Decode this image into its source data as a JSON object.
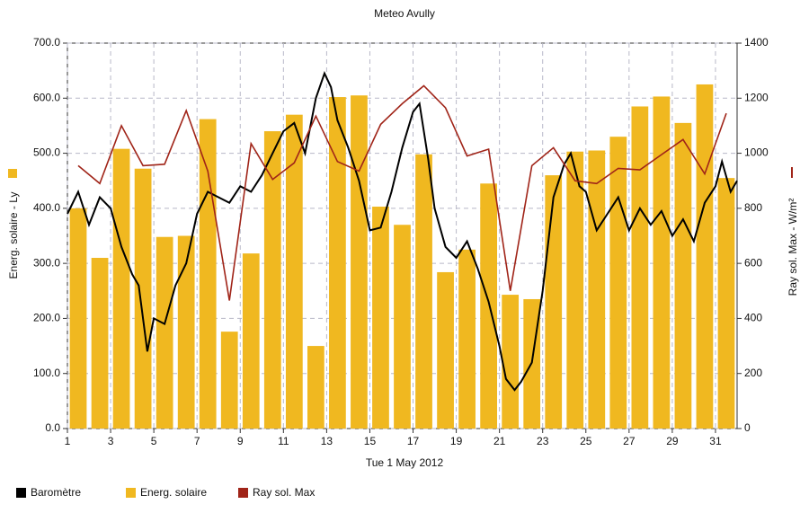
{
  "chart_data": {
    "type": "combo",
    "title": "Meteo  Avully",
    "x_label": "Tue 1 May 2012",
    "y_label": "Energ. solaire - Ly",
    "y2_label": "Ray sol. Max - W/m²",
    "xlim": [
      1,
      32
    ],
    "xticks": [
      1,
      3,
      5,
      7,
      9,
      11,
      13,
      15,
      17,
      19,
      21,
      23,
      25,
      27,
      29,
      31
    ],
    "ylim": [
      0,
      700
    ],
    "yticks": [
      {
        "value": 0,
        "label": "0.0"
      },
      {
        "value": 100,
        "label": "100.0"
      },
      {
        "value": 200,
        "label": "200.0"
      },
      {
        "value": 300,
        "label": "300.0"
      },
      {
        "value": 400,
        "label": "400.0"
      },
      {
        "value": 500,
        "label": "500.0"
      },
      {
        "value": 600,
        "label": "600.0"
      },
      {
        "value": 700,
        "label": "700.0"
      }
    ],
    "y2lim": [
      0,
      1400
    ],
    "y2ticks": [
      0,
      200,
      400,
      600,
      800,
      1000,
      1200,
      1400
    ],
    "grid": true,
    "legend": "bottom",
    "series": [
      {
        "name": "Baromètre",
        "type": "line",
        "color": "#000000",
        "x": [
          1,
          1.5,
          2,
          2.5,
          3,
          3.5,
          4,
          4.3,
          4.7,
          5,
          5.5,
          6,
          6.5,
          7,
          7.5,
          8,
          8.5,
          9,
          9.5,
          10,
          10.5,
          11,
          11.5,
          12,
          12.5,
          12.9,
          13.2,
          13.5,
          14,
          14.5,
          15,
          15.5,
          16,
          16.5,
          17,
          17.3,
          17.7,
          18,
          18.5,
          19,
          19.5,
          20,
          20.5,
          21,
          21.3,
          21.7,
          22,
          22.5,
          23,
          23.5,
          24,
          24.3,
          24.7,
          25,
          25.5,
          26,
          26.5,
          27,
          27.5,
          28,
          28.5,
          29,
          29.5,
          30,
          30.5,
          31,
          31.3,
          31.7,
          32
        ],
        "values": [
          390,
          430,
          370,
          420,
          400,
          330,
          280,
          260,
          140,
          200,
          190,
          260,
          300,
          390,
          430,
          420,
          410,
          440,
          430,
          460,
          500,
          540,
          555,
          500,
          600,
          645,
          620,
          560,
          510,
          450,
          360,
          365,
          430,
          510,
          575,
          590,
          490,
          400,
          330,
          310,
          340,
          290,
          230,
          150,
          90,
          70,
          85,
          120,
          250,
          420,
          480,
          500,
          440,
          430,
          360,
          390,
          420,
          360,
          400,
          370,
          395,
          350,
          380,
          340,
          410,
          440,
          485,
          430,
          450
        ]
      },
      {
        "name": "Energ. solaire",
        "type": "bar",
        "color": "#f0b820",
        "x": [
          1.5,
          2.5,
          3.5,
          4.5,
          5.5,
          6.5,
          7.5,
          8.5,
          9.5,
          10.5,
          11.5,
          12.5,
          13.5,
          14.5,
          15.5,
          16.5,
          17.5,
          18.5,
          19.5,
          20.5,
          21.5,
          22.5,
          23.5,
          24.5,
          25.5,
          26.5,
          27.5,
          28.5,
          29.5,
          30.5,
          31.5
        ],
        "values": [
          400,
          310,
          508,
          472,
          348,
          350,
          562,
          176,
          318,
          540,
          570,
          150,
          602,
          605,
          403,
          370,
          498,
          284,
          325,
          445,
          243,
          235,
          460,
          503,
          505,
          530,
          585,
          603,
          555,
          625,
          455
        ]
      },
      {
        "name": "Ray sol. Max",
        "type": "line",
        "axis": "y2",
        "color": "#a02418",
        "x": [
          1.5,
          2.5,
          3.5,
          4.5,
          5.5,
          6.5,
          7.5,
          8.5,
          9.5,
          10.5,
          11.5,
          12.5,
          13.5,
          14.5,
          15.5,
          16.5,
          17.5,
          18.5,
          19.5,
          20.5,
          21.5,
          22.5,
          23.5,
          24.5,
          25.5,
          26.5,
          27.5,
          28.5,
          29.5,
          30.5,
          31.5
        ],
        "values": [
          955,
          890,
          1100,
          955,
          960,
          1155,
          935,
          465,
          1035,
          905,
          965,
          1135,
          970,
          935,
          1105,
          1180,
          1245,
          1165,
          990,
          1015,
          500,
          955,
          1020,
          900,
          890,
          945,
          940,
          995,
          1050,
          925,
          1145
        ]
      }
    ]
  }
}
